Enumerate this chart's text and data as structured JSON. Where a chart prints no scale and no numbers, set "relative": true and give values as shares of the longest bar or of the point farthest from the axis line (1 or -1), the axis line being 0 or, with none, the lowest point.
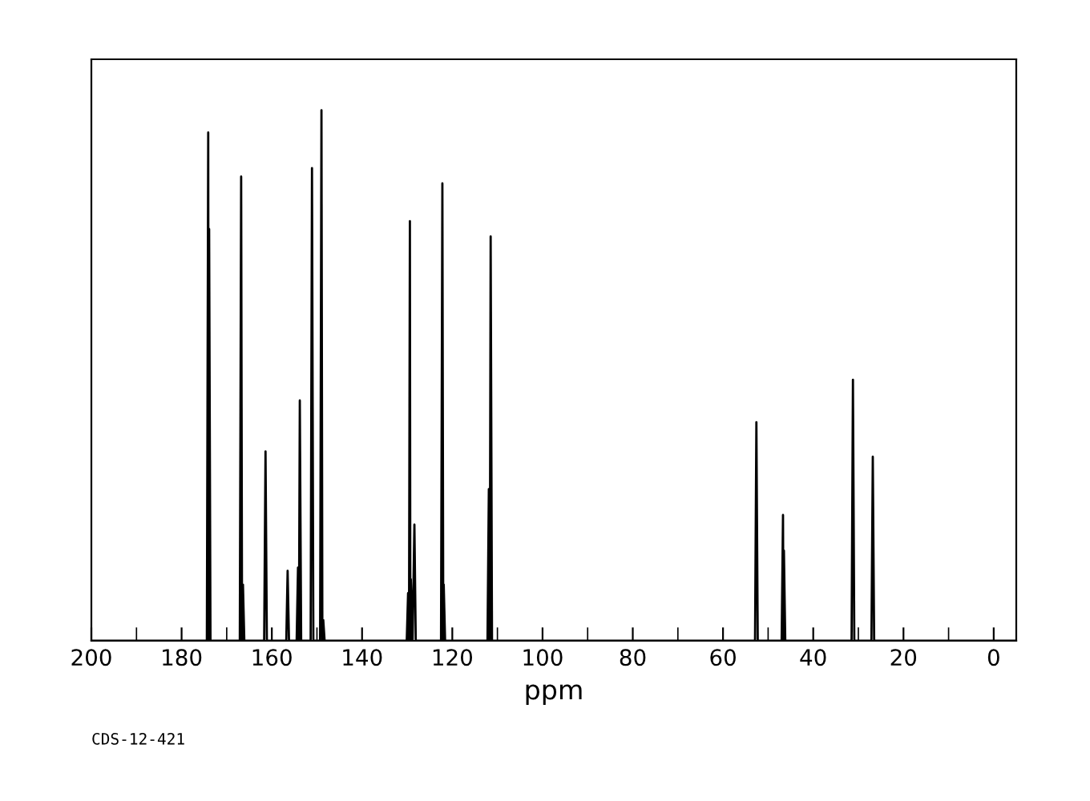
{
  "chart_data": {
    "type": "line",
    "relative": true,
    "xlabel": "ppm",
    "annotations": [
      "CDS-12-421"
    ],
    "xlim": [
      200,
      -5
    ],
    "xticks": [
      200,
      180,
      160,
      140,
      120,
      100,
      80,
      60,
      40,
      20,
      0
    ],
    "tick_labels": "x",
    "grid": false,
    "legend": false,
    "marker": "none",
    "line_style": "solid",
    "series": [
      {
        "color": "#000000",
        "x": [
          200,
          174.4,
          174.1,
          174.0,
          173.9,
          173.6,
          167.1,
          166.8,
          166.6,
          166.4,
          166.1,
          161.7,
          161.4,
          161.1,
          156.8,
          156.5,
          156.2,
          154.5,
          154.2,
          154.0,
          153.8,
          153.5,
          151.4,
          151.1,
          150.8,
          149.3,
          149.0,
          148.8,
          148.6,
          148.3,
          130.1,
          129.8,
          129.6,
          129.4,
          129.3,
          129.2,
          128.8,
          128.4,
          128.1,
          122.5,
          122.2,
          122.0,
          121.9,
          121.6,
          112.2,
          111.9,
          111.7,
          111.5,
          111.2,
          52.9,
          52.6,
          52.3,
          47.0,
          46.7,
          46.6,
          46.5,
          46.2,
          31.5,
          31.2,
          30.9,
          27.1,
          26.8,
          26.5,
          -5
        ],
        "values": [
          0,
          0,
          0.958,
          0,
          0.776,
          0,
          0,
          0.875,
          0,
          0.106,
          0,
          0,
          0.357,
          0,
          0,
          0.132,
          0,
          0,
          0.138,
          0,
          0.453,
          0,
          0,
          0.891,
          0,
          0,
          1.0,
          0,
          0.039,
          0,
          0,
          0.09,
          0,
          0.791,
          0,
          0.116,
          0,
          0.219,
          0,
          0,
          0.862,
          0,
          0.106,
          0,
          0,
          0.286,
          0,
          0.762,
          0,
          0,
          0.412,
          0,
          0,
          0.237,
          0,
          0.17,
          0,
          0,
          0.492,
          0,
          0,
          0.347,
          0,
          0
        ]
      }
    ]
  }
}
